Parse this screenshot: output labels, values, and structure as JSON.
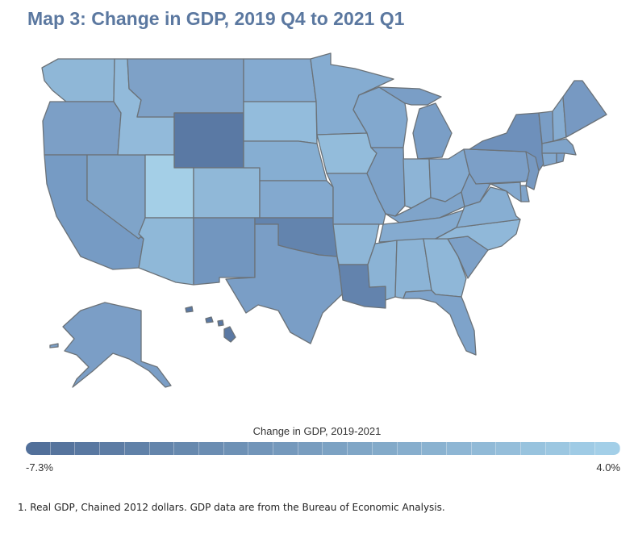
{
  "title": "Map 3: Change in GDP, 2019 Q4 to 2021 Q1",
  "legend": {
    "title": "Change in GDP, 2019-2021",
    "min_label": "-7.3%",
    "max_label": "4.0%",
    "color_low": "#52709a",
    "color_high": "#a3cfe8",
    "segments": 24
  },
  "footnote": "1. Real GDP, Chained 2012 dollars. GDP data are from the Bureau of Economic Analysis.",
  "map_colors": {
    "WA": "#8fb7d7",
    "OR": "#7c9fc6",
    "CA": "#769bc4",
    "NV": "#7fa4c9",
    "ID": "#92bada",
    "MT": "#7ea1c7",
    "WY": "#5a79a4",
    "UT": "#a4cfe7",
    "AZ": "#8fb8d8",
    "CO": "#90b8d8",
    "NM": "#7296bf",
    "ND": "#84aad0",
    "SD": "#93bcdc",
    "NE": "#86aed2",
    "KS": "#83a9cf",
    "OK": "#6384ae",
    "TX": "#7a9ec6",
    "MN": "#85acd1",
    "IA": "#93bcdb",
    "MO": "#82a8ce",
    "AR": "#8eb6d7",
    "LA": "#6383ad",
    "WI": "#82a8ce",
    "IL": "#7da2c9",
    "MI": "#7a9ec6",
    "IN": "#8db4d6",
    "OH": "#84aad0",
    "KY": "#7fa4ca",
    "TN": "#85abd0",
    "MS": "#8bb3d5",
    "AL": "#8cb4d6",
    "GA": "#8fb7d8",
    "FL": "#7ea3ca",
    "SC": "#7da1c8",
    "NC": "#90b8d9",
    "VA": "#87aed2",
    "WV": "#7ea2c9",
    "PA": "#7c9fc7",
    "NY": "#6e90bb",
    "VT": "#7a9dc5",
    "NH": "#86acd1",
    "ME": "#7799c2",
    "MA": "#7fa3c9",
    "NJ": "#7799c1",
    "DE": "#80a4ca",
    "MD": "#84a9cf",
    "CT": "#83a8ce",
    "RI": "#7b9fc7",
    "AK": "#7b9ec6",
    "HI": "#5a78a3"
  }
}
